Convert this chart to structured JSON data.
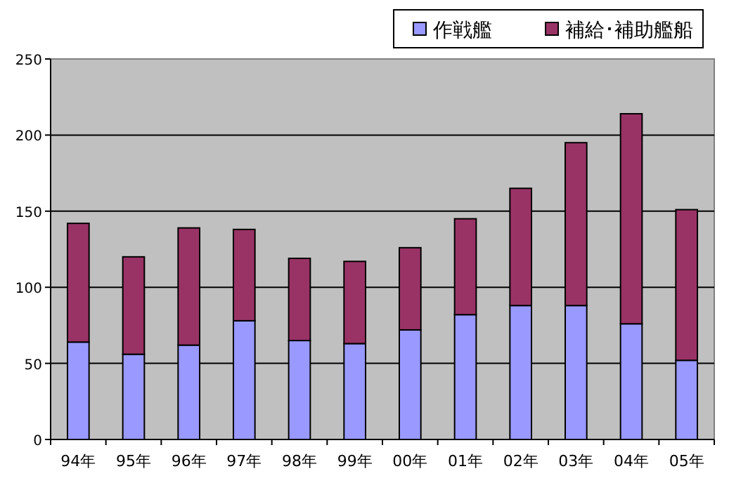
{
  "chart_data": {
    "type": "bar",
    "stacked": true,
    "categories": [
      "94年",
      "95年",
      "96年",
      "97年",
      "98年",
      "99年",
      "00年",
      "01年",
      "02年",
      "03年",
      "04年",
      "05年"
    ],
    "series": [
      {
        "name": "作戦艦",
        "color": "#9999ff",
        "values": [
          64,
          56,
          62,
          78,
          65,
          63,
          72,
          82,
          88,
          88,
          76,
          52
        ]
      },
      {
        "name": "補給･補助艦船",
        "color": "#993366",
        "values": [
          78,
          64,
          77,
          60,
          54,
          54,
          54,
          63,
          77,
          107,
          138,
          99
        ]
      }
    ],
    "ylim": [
      0,
      250
    ],
    "yticks": [
      0,
      50,
      100,
      150,
      200,
      250
    ],
    "grid": "y",
    "legend": "top right"
  }
}
